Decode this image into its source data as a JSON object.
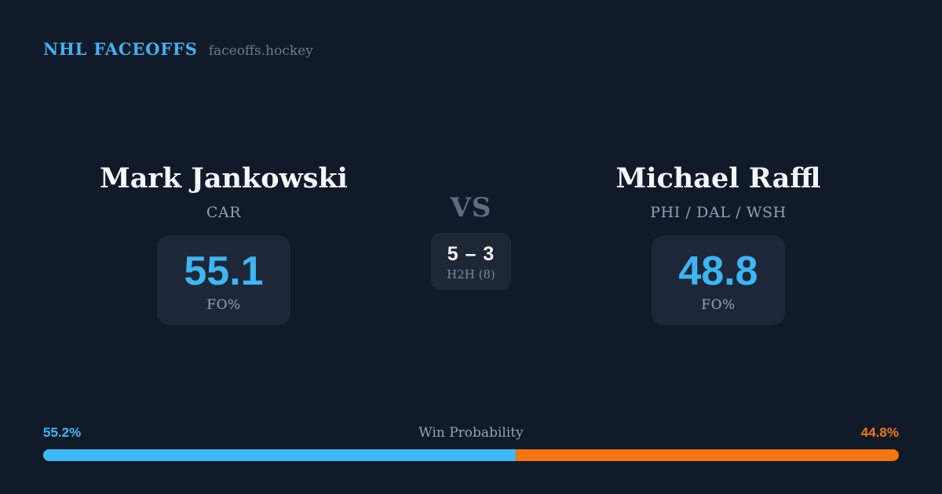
{
  "header": {
    "brand": "NHL FACEOFFS",
    "site": "faceoffs.hockey"
  },
  "matchup": {
    "left": {
      "name": "Mark Jankowski",
      "teams": "CAR",
      "fo_value": "55.1",
      "fo_label": "FO%"
    },
    "vs_label": "VS",
    "h2h": {
      "score": "5 – 3",
      "label": "H2H (8)"
    },
    "right": {
      "name": "Michael Raffl",
      "teams": "PHI / DAL / WSH",
      "fo_value": "48.8",
      "fo_label": "FO%"
    }
  },
  "win_probability": {
    "label": "Win Probability",
    "left_pct_label": "55.2%",
    "right_pct_label": "44.8%",
    "left_value": 55.2,
    "right_value": 44.8
  },
  "colors": {
    "background": "#111a29",
    "card": "#1d2737",
    "accent_blue": "#3db6f2",
    "accent_orange": "#f5750e",
    "text_white": "#f4f7fb",
    "text_slate": "#93a0b3"
  }
}
